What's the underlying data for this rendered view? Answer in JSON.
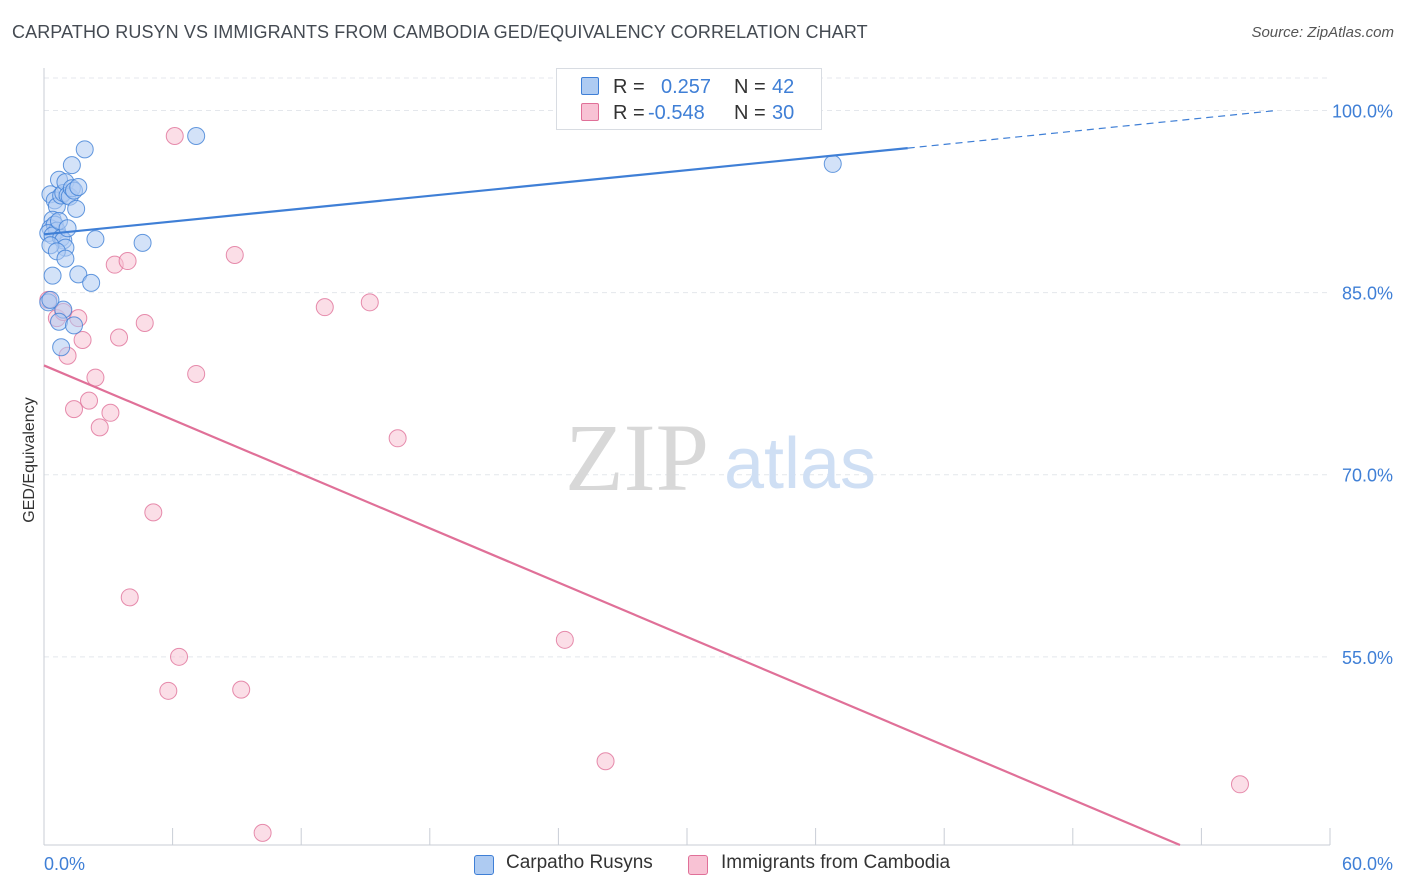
{
  "title": "CARPATHO RUSYN VS IMMIGRANTS FROM CAMBODIA GED/EQUIVALENCY CORRELATION CHART",
  "source": "Source: ZipAtlas.com",
  "watermark": {
    "zip": "ZIP",
    "atlas": "atlas"
  },
  "colors": {
    "blue": "#3f7fd6",
    "blue_fill": "#aecbf2",
    "pink": "#e07098",
    "pink_fill": "#f8c2d4",
    "axis_text": "#3f7fd6",
    "grid": "#e4e7ec"
  },
  "legend": {
    "rows": [
      {
        "r_label": "R =",
        "r_value": "0.257",
        "n_label": "N =",
        "n_value": "42"
      },
      {
        "r_label": "R =",
        "r_value": "-0.548",
        "n_label": "N =",
        "n_value": "30"
      }
    ]
  },
  "bottom_legend": {
    "series1": "Carpatho Rusyns",
    "series2": "Immigrants from Cambodia"
  },
  "chart_data": {
    "type": "scatter",
    "xlabel": "",
    "ylabel": "GED/Equivalency",
    "xlim": [
      0,
      60
    ],
    "ylim": [
      39.5,
      103.5
    ],
    "x_tick_labels": [
      {
        "value": 0,
        "label": "0.0%"
      },
      {
        "value": 60,
        "label": "60.0%"
      }
    ],
    "y_tick_labels": [
      {
        "value": 100,
        "label": "100.0%"
      },
      {
        "value": 85,
        "label": "85.0%"
      },
      {
        "value": 70,
        "label": "70.0%"
      },
      {
        "value": 55,
        "label": "55.0%"
      }
    ],
    "series": [
      {
        "name": "Carpatho Rusyns",
        "R": 0.257,
        "N": 42,
        "trend": {
          "x0": 0,
          "y0": 89.8,
          "x1": 40.3,
          "y1": 96.9,
          "dashed_to_x": 57.5,
          "dashed_to_y": 100.0
        },
        "points": [
          [
            0.3,
            93.1
          ],
          [
            0.5,
            92.6
          ],
          [
            0.6,
            92.1
          ],
          [
            0.7,
            94.3
          ],
          [
            0.8,
            93.0
          ],
          [
            0.9,
            93.2
          ],
          [
            1.0,
            94.1
          ],
          [
            1.1,
            93.0
          ],
          [
            1.2,
            92.9
          ],
          [
            1.3,
            93.6
          ],
          [
            1.4,
            93.4
          ],
          [
            1.5,
            91.9
          ],
          [
            1.6,
            93.7
          ],
          [
            0.4,
            91.0
          ],
          [
            0.3,
            90.3
          ],
          [
            0.5,
            90.6
          ],
          [
            0.6,
            90.1
          ],
          [
            0.2,
            89.9
          ],
          [
            0.4,
            89.7
          ],
          [
            0.8,
            89.5
          ],
          [
            0.9,
            89.3
          ],
          [
            1.0,
            88.7
          ],
          [
            0.3,
            88.9
          ],
          [
            0.6,
            88.4
          ],
          [
            1.0,
            87.8
          ],
          [
            0.4,
            86.4
          ],
          [
            1.6,
            86.5
          ],
          [
            2.2,
            85.8
          ],
          [
            2.4,
            89.4
          ],
          [
            4.6,
            89.1
          ],
          [
            1.3,
            95.5
          ],
          [
            1.9,
            96.8
          ],
          [
            7.1,
            97.9
          ],
          [
            0.2,
            84.2
          ],
          [
            0.9,
            83.6
          ],
          [
            0.7,
            82.6
          ],
          [
            1.4,
            82.3
          ],
          [
            0.8,
            80.5
          ],
          [
            36.8,
            95.6
          ],
          [
            0.3,
            84.4
          ],
          [
            0.7,
            90.9
          ],
          [
            1.1,
            90.3
          ]
        ]
      },
      {
        "name": "Immigrants from Cambodia",
        "R": -0.548,
        "N": 30,
        "trend": {
          "x0": 0,
          "y0": 79.0,
          "x1": 53,
          "y1": 39.5
        },
        "points": [
          [
            0.2,
            84.4
          ],
          [
            0.6,
            82.9
          ],
          [
            0.9,
            83.4
          ],
          [
            1.6,
            82.9
          ],
          [
            1.8,
            81.1
          ],
          [
            1.1,
            79.8
          ],
          [
            2.4,
            78.0
          ],
          [
            3.3,
            87.3
          ],
          [
            3.9,
            87.6
          ],
          [
            3.5,
            81.3
          ],
          [
            4.7,
            82.5
          ],
          [
            7.1,
            78.3
          ],
          [
            6.1,
            97.9
          ],
          [
            8.9,
            88.1
          ],
          [
            13.1,
            83.8
          ],
          [
            15.2,
            84.2
          ],
          [
            16.5,
            73.0
          ],
          [
            1.4,
            75.4
          ],
          [
            2.1,
            76.1
          ],
          [
            2.6,
            73.9
          ],
          [
            3.1,
            75.1
          ],
          [
            5.1,
            66.9
          ],
          [
            4.0,
            59.9
          ],
          [
            6.3,
            55.0
          ],
          [
            5.8,
            52.2
          ],
          [
            9.2,
            52.3
          ],
          [
            24.3,
            56.4
          ],
          [
            26.2,
            46.4
          ],
          [
            55.8,
            44.5
          ],
          [
            10.2,
            40.5
          ]
        ]
      }
    ]
  }
}
